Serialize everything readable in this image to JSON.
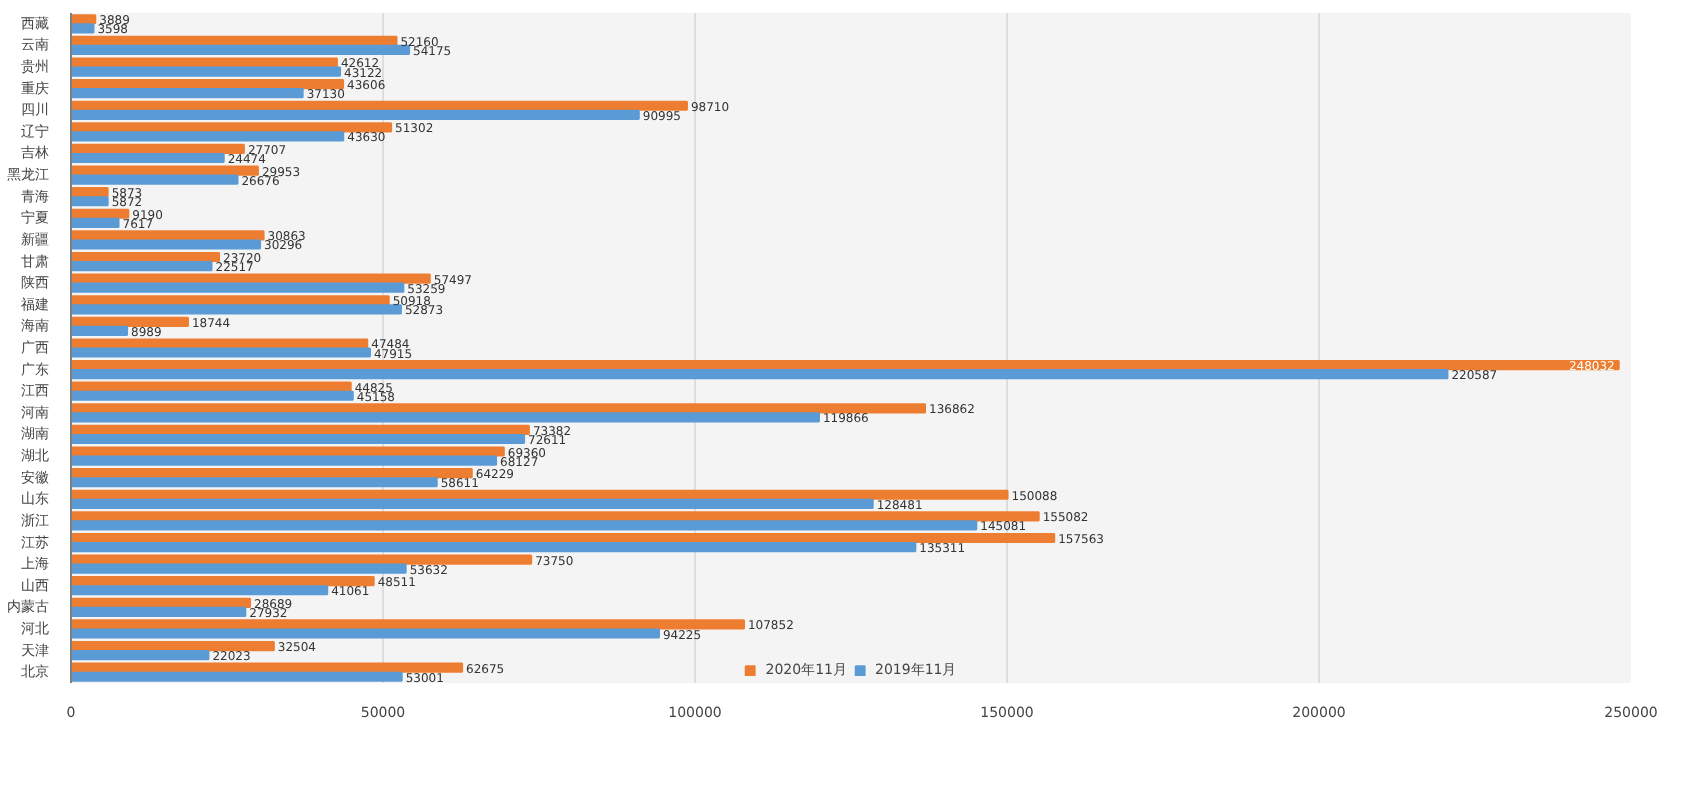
{
  "chart_data": {
    "type": "bar",
    "orientation": "horizontal",
    "categories": [
      "西藏",
      "云南",
      "贵州",
      "重庆",
      "四川",
      "辽宁",
      "吉林",
      "黑龙江",
      "青海",
      "宁夏",
      "新疆",
      "甘肃",
      "陕西",
      "福建",
      "海南",
      "广西",
      "广东",
      "江西",
      "河南",
      "湖南",
      "湖北",
      "安徽",
      "山东",
      "浙江",
      "江苏",
      "上海",
      "山西",
      "内蒙古",
      "河北",
      "天津",
      "北京"
    ],
    "series": [
      {
        "name": "2020年11月",
        "color": "#ed7d31",
        "values": [
          3889,
          52160,
          42612,
          43606,
          98710,
          51302,
          27707,
          29953,
          5873,
          9190,
          30863,
          23720,
          57497,
          50918,
          18744,
          47484,
          248032,
          44825,
          136862,
          73382,
          69360,
          64229,
          150088,
          155082,
          157563,
          73750,
          48511,
          28689,
          107852,
          32504,
          62675
        ]
      },
      {
        "name": "2019年11月",
        "color": "#5b9bd5",
        "values": [
          3598,
          54175,
          43122,
          37130,
          90995,
          43630,
          24474,
          26676,
          5872,
          7617,
          30296,
          22517,
          53259,
          52873,
          8989,
          47915,
          220587,
          45158,
          119866,
          72611,
          68127,
          58611,
          128481,
          145081,
          135311,
          53632,
          41061,
          27932,
          94225,
          22023,
          53001
        ]
      }
    ],
    "xlim": [
      0,
      250000
    ],
    "xticks": [
      0,
      50000,
      100000,
      150000,
      200000,
      250000
    ],
    "grid": "x",
    "legend": "bottom",
    "data_labels": true
  }
}
